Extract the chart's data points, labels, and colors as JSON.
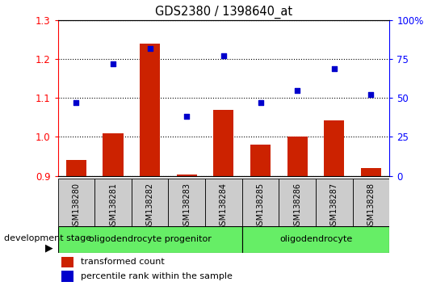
{
  "title": "GDS2380 / 1398640_at",
  "samples": [
    "GSM138280",
    "GSM138281",
    "GSM138282",
    "GSM138283",
    "GSM138284",
    "GSM138285",
    "GSM138286",
    "GSM138287",
    "GSM138288"
  ],
  "red_values": [
    0.94,
    1.01,
    1.24,
    0.903,
    1.07,
    0.98,
    1.0,
    1.042,
    0.92
  ],
  "blue_values": [
    47,
    72,
    82,
    38,
    77,
    47,
    55,
    69,
    52
  ],
  "ylim_left": [
    0.9,
    1.3
  ],
  "ylim_right": [
    0,
    100
  ],
  "left_ticks": [
    0.9,
    1.0,
    1.1,
    1.2,
    1.3
  ],
  "right_ticks": [
    0,
    25,
    50,
    75,
    100
  ],
  "right_tick_labels": [
    "0",
    "25",
    "50",
    "75",
    "100%"
  ],
  "group1_label": "oligodendrocyte progenitor",
  "group2_label": "oligodendrocyte",
  "group1_indices": [
    0,
    1,
    2,
    3,
    4
  ],
  "group2_indices": [
    5,
    6,
    7,
    8
  ],
  "bar_color": "#cc2200",
  "dot_color": "#0000cc",
  "group_color": "#66ee66",
  "label_bg_color": "#cccccc",
  "dev_label": "development stage",
  "legend1": "transformed count",
  "legend2": "percentile rank within the sample",
  "bar_width": 0.55,
  "bar_baseline": 0.9,
  "left_tick_color": "red",
  "right_tick_color": "blue"
}
